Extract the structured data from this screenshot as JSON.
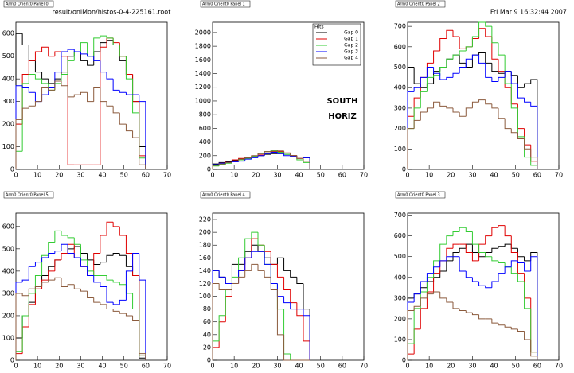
{
  "header": {
    "file": "result/onlMon/histos-0-4-225161.root",
    "date": "Fri Mar  9 16:32:44 2007"
  },
  "chart_data": [
    {
      "type": "histogram",
      "title": "Arm0 Orient0 Panel 0",
      "xlim": [
        0,
        70
      ],
      "xticks": [
        0,
        10,
        20,
        30,
        40,
        50,
        60,
        70
      ],
      "ylim": [
        0,
        650
      ],
      "yticks": [
        0,
        100,
        200,
        300,
        400,
        500,
        600
      ],
      "bins": [
        0,
        3,
        6,
        9,
        12,
        15,
        18,
        21,
        24,
        27,
        30,
        33,
        36,
        39,
        42,
        45,
        48,
        51,
        54,
        57,
        60
      ],
      "series": [
        {
          "color": "#000000",
          "values": [
            600,
            550,
            480,
            430,
            400,
            380,
            400,
            430,
            500,
            520,
            480,
            460,
            520,
            560,
            570,
            550,
            480,
            420,
            300,
            100
          ]
        },
        {
          "color": "#e00000",
          "values": [
            200,
            420,
            480,
            520,
            540,
            500,
            520,
            500,
            20,
            20,
            20,
            20,
            20,
            540,
            580,
            560,
            500,
            420,
            300,
            60
          ]
        },
        {
          "color": "#33cc33",
          "values": [
            80,
            380,
            420,
            400,
            380,
            350,
            380,
            420,
            480,
            520,
            560,
            500,
            580,
            590,
            580,
            550,
            500,
            400,
            250,
            50
          ]
        },
        {
          "color": "#0000ff",
          "values": [
            370,
            360,
            340,
            300,
            330,
            360,
            430,
            520,
            530,
            520,
            510,
            500,
            480,
            430,
            400,
            350,
            340,
            330,
            330,
            300
          ]
        },
        {
          "color": "#8b5a3c",
          "values": [
            220,
            270,
            280,
            300,
            360,
            350,
            390,
            370,
            320,
            330,
            340,
            300,
            360,
            300,
            280,
            250,
            200,
            170,
            140,
            20
          ]
        }
      ]
    },
    {
      "type": "histogram",
      "title": "Arm0 Orient0 Panel 1",
      "xlim": [
        0,
        70
      ],
      "xticks": [
        0,
        10,
        20,
        30,
        40,
        50,
        60,
        70
      ],
      "ylim": [
        0,
        2150
      ],
      "yticks": [
        0,
        200,
        400,
        600,
        800,
        1000,
        1200,
        1400,
        1600,
        1800,
        2000
      ],
      "bins": [
        0,
        3,
        6,
        9,
        12,
        15,
        18,
        21,
        24,
        27,
        30,
        33,
        36,
        39,
        42,
        45
      ],
      "legend_title": "Hits",
      "annotations": [
        "SOUTH",
        "HORIZ"
      ],
      "series": [
        {
          "name": "Gap 0",
          "color": "#000000",
          "values": [
            80,
            100,
            110,
            130,
            150,
            170,
            180,
            200,
            220,
            230,
            230,
            220,
            200,
            180,
            170
          ]
        },
        {
          "name": "Gap 1",
          "color": "#e00000",
          "values": [
            60,
            90,
            120,
            140,
            160,
            170,
            190,
            210,
            240,
            260,
            260,
            240,
            200,
            160,
            120
          ]
        },
        {
          "name": "Gap 2",
          "color": "#33cc33",
          "values": [
            50,
            70,
            90,
            110,
            140,
            160,
            190,
            230,
            260,
            270,
            250,
            220,
            180,
            140,
            100
          ]
        },
        {
          "name": "Gap 3",
          "color": "#0000ff",
          "values": [
            70,
            90,
            100,
            110,
            120,
            150,
            170,
            200,
            230,
            250,
            230,
            200,
            190,
            180,
            170
          ]
        },
        {
          "name": "Gap 4",
          "color": "#8b5a3c",
          "values": [
            60,
            80,
            100,
            120,
            150,
            170,
            200,
            230,
            260,
            280,
            270,
            240,
            200,
            160,
            120
          ]
        }
      ]
    },
    {
      "type": "histogram",
      "title": "Arm0 Orient0 Panel 2",
      "xlim": [
        0,
        70
      ],
      "xticks": [
        0,
        10,
        20,
        30,
        40,
        50,
        60,
        70
      ],
      "ylim": [
        0,
        720
      ],
      "yticks": [
        0,
        100,
        200,
        300,
        400,
        500,
        600,
        700
      ],
      "bins": [
        0,
        3,
        6,
        9,
        12,
        15,
        18,
        21,
        24,
        27,
        30,
        33,
        36,
        39,
        42,
        45,
        48,
        51,
        54,
        57,
        60
      ],
      "series": [
        {
          "color": "#000000",
          "values": [
            500,
            420,
            400,
            420,
            480,
            500,
            540,
            560,
            520,
            500,
            560,
            570,
            520,
            480,
            470,
            480,
            460,
            400,
            420,
            440
          ]
        },
        {
          "color": "#e00000",
          "values": [
            260,
            350,
            450,
            520,
            580,
            640,
            680,
            650,
            590,
            600,
            640,
            690,
            650,
            540,
            480,
            400,
            320,
            200,
            120,
            40
          ]
        },
        {
          "color": "#33cc33",
          "values": [
            200,
            300,
            380,
            450,
            460,
            500,
            540,
            560,
            580,
            600,
            650,
            720,
            700,
            620,
            560,
            420,
            300,
            160,
            60,
            20
          ]
        },
        {
          "color": "#0000ff",
          "values": [
            380,
            400,
            450,
            500,
            470,
            440,
            450,
            470,
            500,
            540,
            560,
            520,
            450,
            430,
            450,
            480,
            420,
            350,
            330,
            310
          ]
        },
        {
          "color": "#8b5a3c",
          "values": [
            200,
            240,
            280,
            300,
            330,
            310,
            300,
            280,
            260,
            300,
            330,
            340,
            320,
            300,
            250,
            200,
            180,
            150,
            100,
            60
          ]
        }
      ]
    },
    {
      "type": "histogram",
      "title": "Arm0 Orient0 Panel 5",
      "xlim": [
        0,
        70
      ],
      "xticks": [
        0,
        10,
        20,
        30,
        40,
        50,
        60,
        70
      ],
      "ylim": [
        0,
        660
      ],
      "yticks": [
        0,
        100,
        200,
        300,
        400,
        500,
        600
      ],
      "bins": [
        0,
        3,
        6,
        9,
        12,
        15,
        18,
        21,
        24,
        27,
        30,
        33,
        36,
        39,
        42,
        45,
        48,
        51,
        54,
        57,
        60
      ],
      "series": [
        {
          "color": "#000000",
          "values": [
            100,
            200,
            260,
            330,
            380,
            420,
            450,
            480,
            500,
            510,
            480,
            450,
            430,
            440,
            470,
            480,
            470,
            420,
            380,
            10
          ]
        },
        {
          "color": "#e00000",
          "values": [
            30,
            150,
            250,
            320,
            360,
            400,
            450,
            480,
            520,
            460,
            420,
            380,
            480,
            560,
            620,
            600,
            560,
            480,
            380,
            20
          ]
        },
        {
          "color": "#33cc33",
          "values": [
            40,
            200,
            300,
            380,
            470,
            530,
            580,
            560,
            550,
            520,
            450,
            400,
            380,
            380,
            360,
            350,
            340,
            300,
            230,
            20
          ]
        },
        {
          "color": "#0000ff",
          "values": [
            350,
            360,
            420,
            440,
            460,
            480,
            490,
            520,
            480,
            460,
            420,
            380,
            350,
            330,
            260,
            250,
            270,
            400,
            480,
            360
          ]
        },
        {
          "color": "#8b5a3c",
          "values": [
            300,
            290,
            320,
            330,
            350,
            360,
            370,
            330,
            340,
            320,
            310,
            280,
            260,
            250,
            230,
            220,
            210,
            200,
            180,
            30
          ]
        }
      ]
    },
    {
      "type": "histogram",
      "title": "Arm0 Orient0 Panel 4",
      "xlim": [
        0,
        70
      ],
      "xticks": [
        0,
        10,
        20,
        30,
        40,
        50,
        60,
        70
      ],
      "ylim": [
        0,
        230
      ],
      "yticks": [
        0,
        20,
        40,
        60,
        80,
        100,
        120,
        140,
        160,
        180,
        200,
        220
      ],
      "bins": [
        0,
        3,
        6,
        9,
        12,
        15,
        18,
        21,
        24,
        27,
        30,
        33,
        36,
        39,
        42,
        45
      ],
      "series": [
        {
          "color": "#000000",
          "values": [
            140,
            130,
            120,
            150,
            150,
            170,
            180,
            170,
            160,
            150,
            160,
            140,
            130,
            120,
            80
          ]
        },
        {
          "color": "#e00000",
          "values": [
            20,
            60,
            100,
            120,
            140,
            160,
            190,
            180,
            170,
            150,
            130,
            110,
            90,
            70,
            30
          ]
        },
        {
          "color": "#33cc33",
          "values": [
            30,
            70,
            110,
            130,
            160,
            190,
            200,
            180,
            150,
            120,
            80,
            10,
            0,
            0,
            0
          ]
        },
        {
          "color": "#0000ff",
          "values": [
            140,
            130,
            120,
            120,
            140,
            160,
            170,
            170,
            150,
            120,
            100,
            90,
            80,
            80,
            70
          ]
        },
        {
          "color": "#8b5a3c",
          "values": [
            120,
            110,
            110,
            120,
            130,
            140,
            150,
            140,
            130,
            110,
            40,
            0,
            0,
            0,
            0
          ]
        }
      ]
    },
    {
      "type": "histogram",
      "title": "Arm0 Orient0 Panel 3",
      "xlim": [
        0,
        70
      ],
      "xticks": [
        0,
        10,
        20,
        30,
        40,
        50,
        60,
        70
      ],
      "ylim": [
        0,
        710
      ],
      "yticks": [
        0,
        100,
        200,
        300,
        400,
        500,
        600,
        700
      ],
      "bins": [
        0,
        3,
        6,
        9,
        12,
        15,
        18,
        21,
        24,
        27,
        30,
        33,
        36,
        39,
        42,
        45,
        48,
        51,
        54,
        57,
        60
      ],
      "series": [
        {
          "color": "#000000",
          "values": [
            300,
            320,
            350,
            380,
            400,
            430,
            480,
            520,
            540,
            560,
            520,
            500,
            520,
            540,
            550,
            560,
            540,
            500,
            480,
            520
          ]
        },
        {
          "color": "#e00000",
          "values": [
            30,
            150,
            250,
            330,
            420,
            480,
            540,
            560,
            560,
            520,
            480,
            560,
            600,
            640,
            650,
            600,
            520,
            420,
            300,
            40
          ]
        },
        {
          "color": "#33cc33",
          "values": [
            80,
            250,
            330,
            400,
            480,
            560,
            600,
            620,
            640,
            620,
            560,
            520,
            500,
            480,
            470,
            450,
            420,
            380,
            250,
            40
          ]
        },
        {
          "color": "#0000ff",
          "values": [
            280,
            320,
            380,
            420,
            450,
            480,
            500,
            500,
            430,
            400,
            380,
            360,
            350,
            380,
            420,
            450,
            480,
            470,
            430,
            500
          ]
        },
        {
          "color": "#8b5a3c",
          "values": [
            240,
            260,
            300,
            320,
            330,
            300,
            280,
            250,
            240,
            230,
            220,
            200,
            200,
            180,
            170,
            160,
            150,
            140,
            100,
            20
          ]
        }
      ]
    }
  ]
}
